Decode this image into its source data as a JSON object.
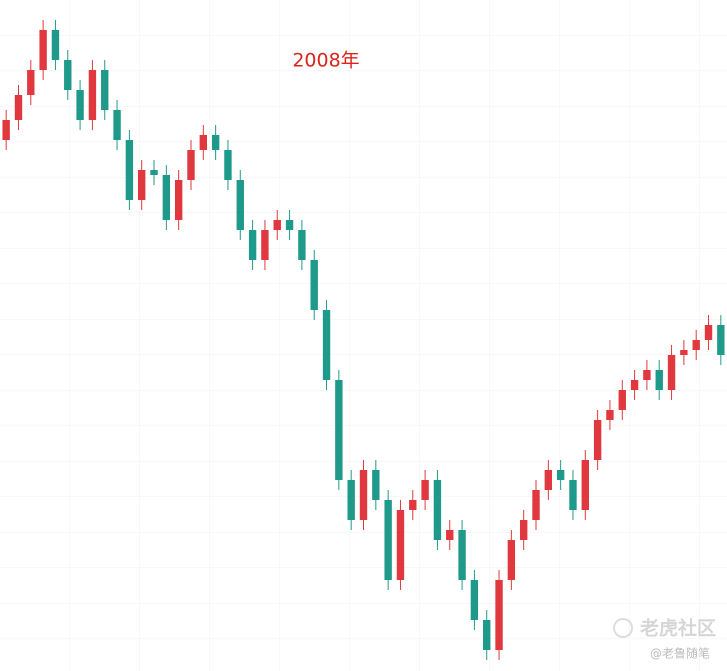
{
  "chart_data": {
    "type": "candlestick",
    "title": "2008年",
    "categories": [
      null,
      null,
      null,
      null,
      null,
      null,
      null,
      null,
      null,
      null,
      null,
      null,
      null,
      null,
      null,
      null,
      null,
      null,
      null,
      null,
      null,
      null,
      null,
      null,
      null,
      null,
      null,
      null,
      null,
      null,
      null,
      null,
      null,
      null,
      null,
      null,
      null,
      null,
      null,
      null,
      null,
      null,
      null,
      null,
      null,
      null,
      null,
      null,
      null,
      null,
      null,
      null,
      null,
      null,
      null,
      null,
      null,
      null,
      null
    ],
    "open": [
      531,
      551,
      576,
      601,
      641,
      611,
      581,
      551,
      601,
      561,
      531,
      471,
      501,
      496,
      451,
      491,
      521,
      536,
      521,
      491,
      441,
      411,
      441,
      451,
      441,
      411,
      361,
      291,
      191,
      151,
      201,
      171,
      91,
      161,
      171,
      191,
      131,
      141,
      91,
      51,
      21,
      91,
      131,
      151,
      181,
      201,
      191,
      161,
      211,
      251,
      261,
      281,
      291,
      301,
      281,
      316,
      321,
      331,
      346
    ],
    "high": [
      561,
      586,
      611,
      651,
      651,
      621,
      591,
      611,
      611,
      571,
      541,
      511,
      511,
      506,
      501,
      531,
      546,
      546,
      531,
      501,
      451,
      451,
      461,
      461,
      451,
      421,
      371,
      301,
      201,
      211,
      211,
      181,
      171,
      181,
      201,
      201,
      151,
      151,
      101,
      61,
      101,
      141,
      161,
      191,
      211,
      211,
      201,
      221,
      261,
      271,
      291,
      301,
      311,
      311,
      326,
      331,
      341,
      356,
      356
    ],
    "low": [
      521,
      541,
      566,
      591,
      601,
      571,
      541,
      541,
      551,
      521,
      461,
      461,
      486,
      441,
      441,
      481,
      511,
      511,
      481,
      431,
      401,
      401,
      431,
      431,
      401,
      351,
      281,
      181,
      141,
      141,
      161,
      81,
      81,
      151,
      161,
      121,
      121,
      81,
      41,
      11,
      11,
      81,
      121,
      141,
      171,
      181,
      151,
      151,
      201,
      241,
      251,
      271,
      281,
      271,
      271,
      306,
      311,
      321,
      306
    ],
    "close": [
      551,
      576,
      601,
      641,
      611,
      581,
      551,
      601,
      561,
      531,
      471,
      501,
      496,
      451,
      491,
      521,
      536,
      521,
      491,
      441,
      411,
      441,
      451,
      441,
      411,
      361,
      291,
      191,
      151,
      201,
      171,
      91,
      161,
      171,
      191,
      131,
      141,
      91,
      51,
      21,
      91,
      131,
      151,
      181,
      201,
      191,
      161,
      211,
      251,
      261,
      281,
      291,
      301,
      281,
      316,
      321,
      331,
      346,
      316
    ],
    "up_color": "#e0383e",
    "down_color": "#1f9a8a",
    "ylim": [
      0,
      671
    ]
  },
  "watermark": {
    "brand": "老虎社区",
    "author": "@老鲁随笔"
  }
}
